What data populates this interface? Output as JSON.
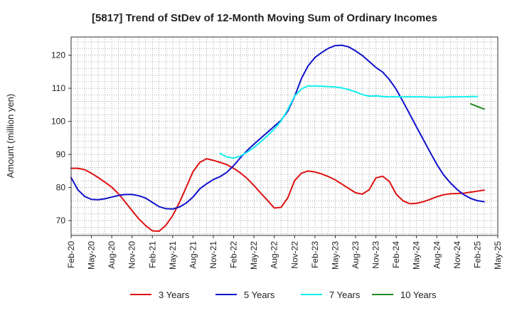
{
  "chart_data": {
    "type": "line",
    "title": "[5817]  Trend of StDev of 12-Month Moving Sum of Ordinary Incomes",
    "xlabel": "",
    "ylabel": "Amount (million yen)",
    "ylim": [
      65.5,
      125.5
    ],
    "yticks": [
      70,
      80,
      90,
      100,
      110,
      120
    ],
    "x_start": "Feb-20",
    "x_tick_labels": [
      "Feb-20",
      "May-20",
      "Aug-20",
      "Nov-20",
      "Feb-21",
      "May-21",
      "Aug-21",
      "Nov-21",
      "Feb-22",
      "May-22",
      "Aug-22",
      "Nov-22",
      "Feb-23",
      "May-23",
      "Aug-23",
      "Nov-23",
      "Feb-24",
      "May-24",
      "Aug-24",
      "Nov-24",
      "Feb-25",
      "May-25"
    ],
    "grid": true,
    "legend_position": "bottom",
    "series": [
      {
        "name": "3 Years",
        "color": "#dd1111",
        "start_index": 0,
        "values": [
          85.8,
          85.8,
          85.4,
          84.3,
          83.0,
          81.6,
          80.1,
          78.1,
          75.6,
          73.0,
          70.5,
          68.5,
          66.9,
          66.8,
          68.6,
          71.5,
          75.5,
          80.1,
          84.8,
          87.6,
          88.7,
          88.2,
          87.6,
          86.9,
          85.8,
          84.4,
          82.7,
          80.6,
          78.3,
          76.1,
          73.8,
          74.0,
          76.9,
          82.1,
          84.3,
          85.0,
          84.7,
          84.1,
          83.3,
          82.3,
          81.0,
          79.7,
          78.4,
          78.0,
          79.3,
          82.9,
          83.4,
          81.8,
          78.0,
          76.0,
          75.1,
          75.2,
          75.7,
          76.4,
          77.2,
          77.8,
          78.1,
          78.2,
          78.3,
          78.6,
          78.9,
          79.2
        ]
      },
      {
        "name": "5 Years",
        "color": "#1111cc",
        "start_index": 0,
        "values": [
          83.0,
          79.3,
          77.3,
          76.4,
          76.3,
          76.6,
          77.1,
          77.6,
          77.9,
          77.9,
          77.5,
          76.8,
          75.5,
          74.2,
          73.6,
          73.5,
          74.1,
          75.3,
          77.1,
          79.6,
          81.1,
          82.4,
          83.3,
          84.6,
          86.6,
          89.0,
          91.2,
          93.1,
          94.9,
          96.7,
          98.5,
          100.3,
          103.1,
          107.5,
          112.9,
          116.8,
          119.3,
          120.8,
          122.1,
          122.9,
          123.0,
          122.5,
          121.3,
          119.9,
          118.1,
          116.3,
          114.9,
          112.6,
          109.7,
          106.0,
          102.2,
          98.3,
          94.5,
          90.7,
          87.0,
          83.8,
          81.4,
          79.4,
          77.8,
          76.7,
          76.0,
          75.7
        ]
      },
      {
        "name": "7 Years",
        "color": "#11eeee",
        "start_index": 22,
        "values": [
          90.3,
          89.2,
          88.9,
          89.5,
          90.7,
          92.1,
          93.8,
          95.7,
          97.7,
          100.1,
          103.6,
          107.6,
          109.8,
          110.7,
          110.7,
          110.6,
          110.5,
          110.4,
          110.1,
          109.6,
          108.9,
          108.1,
          107.6,
          107.7,
          107.5,
          107.4,
          107.4,
          107.4,
          107.4,
          107.4,
          107.4,
          107.3,
          107.3,
          107.3,
          107.4,
          107.4,
          107.4,
          107.5,
          107.5
        ]
      },
      {
        "name": "10 Years",
        "color": "#228822",
        "start_index": 59,
        "values": [
          105.3,
          104.5,
          103.7
        ]
      }
    ]
  }
}
